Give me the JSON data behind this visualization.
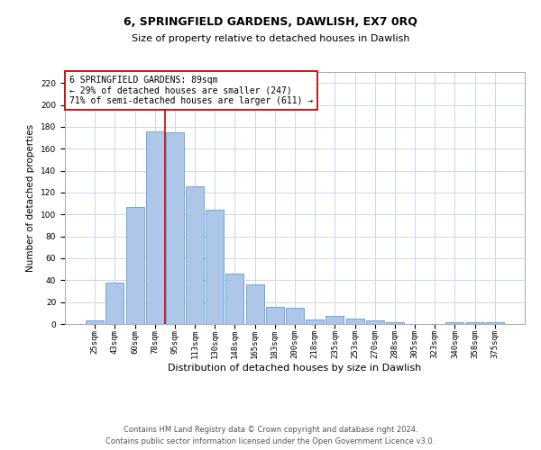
{
  "title": "6, SPRINGFIELD GARDENS, DAWLISH, EX7 0RQ",
  "subtitle": "Size of property relative to detached houses in Dawlish",
  "xlabel": "Distribution of detached houses by size in Dawlish",
  "ylabel": "Number of detached properties",
  "categories": [
    "25sqm",
    "43sqm",
    "60sqm",
    "78sqm",
    "95sqm",
    "113sqm",
    "130sqm",
    "148sqm",
    "165sqm",
    "183sqm",
    "200sqm",
    "218sqm",
    "235sqm",
    "253sqm",
    "270sqm",
    "288sqm",
    "305sqm",
    "323sqm",
    "340sqm",
    "358sqm",
    "375sqm"
  ],
  "values": [
    3,
    38,
    107,
    176,
    175,
    126,
    104,
    46,
    36,
    16,
    15,
    4,
    7,
    5,
    3,
    2,
    0,
    0,
    2,
    2,
    2
  ],
  "bar_color": "#aec6e8",
  "bar_edge_color": "#5a9fd4",
  "vline_x_index": 4,
  "vline_color": "#cc0000",
  "ylim": [
    0,
    230
  ],
  "yticks": [
    0,
    20,
    40,
    60,
    80,
    100,
    120,
    140,
    160,
    180,
    200,
    220
  ],
  "annotation_text": "6 SPRINGFIELD GARDENS: 89sqm\n← 29% of detached houses are smaller (247)\n71% of semi-detached houses are larger (611) →",
  "annotation_box_color": "#ffffff",
  "annotation_box_edge": "#cc0000",
  "footer_line1": "Contains HM Land Registry data © Crown copyright and database right 2024.",
  "footer_line2": "Contains public sector information licensed under the Open Government Licence v3.0.",
  "background_color": "#ffffff",
  "grid_color": "#c8d8e8",
  "title_fontsize": 9,
  "subtitle_fontsize": 8,
  "xlabel_fontsize": 8,
  "ylabel_fontsize": 7.5,
  "tick_fontsize": 6.5,
  "footer_fontsize": 6,
  "annotation_fontsize": 7
}
